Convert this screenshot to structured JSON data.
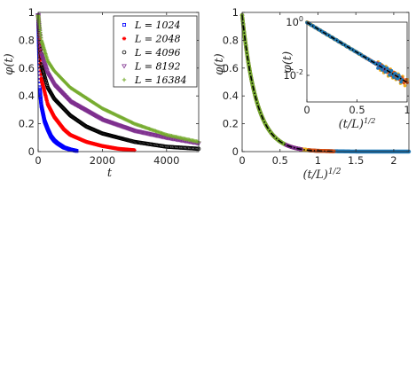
{
  "chart_data": [
    {
      "type": "scatter",
      "xlabel": "t",
      "ylabel": "φ(t)",
      "xlim": [
        0,
        5000
      ],
      "ylim": [
        0,
        1
      ],
      "xticks": [
        "0",
        "2000",
        "4000"
      ],
      "yticks": [
        "0",
        "0.2",
        "0.4",
        "0.6",
        "0.8",
        "1"
      ],
      "legend_position": "top-right",
      "series": [
        {
          "name": "L = 1024",
          "marker": "square",
          "color": "#0000ff",
          "x": [
            0,
            50,
            100,
            200,
            300,
            400,
            500,
            600,
            800,
            1000,
            1200
          ],
          "y": [
            0.98,
            0.45,
            0.33,
            0.22,
            0.16,
            0.11,
            0.08,
            0.06,
            0.03,
            0.015,
            0.005
          ]
        },
        {
          "name": "L = 2048",
          "marker": "star",
          "color": "#ff0000",
          "x": [
            0,
            100,
            300,
            500,
            800,
            1000,
            1500,
            2000,
            2500,
            3000
          ],
          "y": [
            0.98,
            0.52,
            0.34,
            0.25,
            0.16,
            0.12,
            0.07,
            0.04,
            0.02,
            0.01
          ]
        },
        {
          "name": "L = 4096",
          "marker": "circle",
          "color": "#000000",
          "x": [
            0,
            100,
            300,
            500,
            1000,
            1500,
            2000,
            3000,
            4000,
            5000
          ],
          "y": [
            0.98,
            0.62,
            0.46,
            0.38,
            0.26,
            0.18,
            0.13,
            0.07,
            0.035,
            0.02
          ]
        },
        {
          "name": "L = 8192",
          "marker": "triangle",
          "color": "#7e2f8e",
          "x": [
            0,
            100,
            300,
            500,
            1000,
            2000,
            3000,
            4000,
            5000
          ],
          "y": [
            0.98,
            0.7,
            0.56,
            0.48,
            0.36,
            0.23,
            0.15,
            0.1,
            0.06
          ]
        },
        {
          "name": "L = 16384",
          "marker": "plus",
          "color": "#77ac30",
          "x": [
            0,
            100,
            300,
            500,
            1000,
            2000,
            3000,
            4000,
            5000
          ],
          "y": [
            0.98,
            0.8,
            0.65,
            0.58,
            0.46,
            0.31,
            0.2,
            0.12,
            0.07
          ]
        }
      ]
    },
    {
      "type": "scatter",
      "xlabel": "(t/L)^{1/2}",
      "ylabel": "φ(t)",
      "xlim": [
        0,
        2.2
      ],
      "ylim": [
        0,
        1
      ],
      "xticks": [
        "0",
        "0.5",
        "1",
        "1.5",
        "2"
      ],
      "yticks": [
        "0",
        "0.2",
        "0.4",
        "0.6",
        "0.8",
        "1"
      ],
      "fit_line": {
        "style": "dash-dot",
        "color": "#000000",
        "form": "exponential",
        "amplitude": 0.98,
        "decay": 5.2
      },
      "series": [
        {
          "name": "L = 1024",
          "color": "#1f77b4",
          "x": [
            0,
            1.0,
            1.5,
            2.0,
            2.2
          ],
          "y": [
            0.98,
            0.005,
            0.0,
            0.0,
            0.0
          ]
        },
        {
          "name": "L = 2048",
          "color": "#d95319",
          "x": [
            0,
            0.5,
            1.0,
            1.21
          ],
          "y": [
            0.98,
            0.075,
            0.006,
            0.002
          ]
        },
        {
          "name": "L = 4096",
          "color": "#edb120",
          "x": [
            0,
            0.5,
            0.85
          ],
          "y": [
            0.98,
            0.075,
            0.012
          ]
        },
        {
          "name": "L = 8192",
          "color": "#7e2f8e",
          "x": [
            0,
            0.5,
            0.78
          ],
          "y": [
            0.98,
            0.075,
            0.017
          ]
        },
        {
          "name": "L = 16384",
          "color": "#77ac30",
          "x": [
            0,
            0.3,
            0.55
          ],
          "y": [
            0.98,
            0.21,
            0.058
          ]
        }
      ],
      "inset": {
        "type": "scatter",
        "xlabel": "(t/L)^{1/2}",
        "ylabel": "φ(t)",
        "xlim": [
          0,
          1
        ],
        "ylim": [
          0.001,
          1
        ],
        "yscale": "log",
        "xticks": [
          "0",
          "0.5",
          "1"
        ],
        "yticks": [
          {
            "base": "10",
            "exp": "0"
          },
          {
            "base": "10",
            "exp": "-2"
          }
        ]
      }
    }
  ]
}
